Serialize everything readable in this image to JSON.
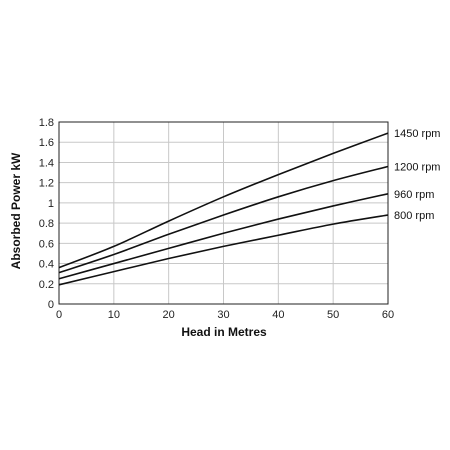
{
  "chart_data": {
    "type": "line",
    "title": "",
    "xlabel": "Head in Metres",
    "ylabel": "Absorbed Power kW",
    "xlim": [
      0,
      60
    ],
    "ylim": [
      0,
      1.8
    ],
    "xticks": [
      "0",
      "10",
      "20",
      "30",
      "40",
      "50",
      "60"
    ],
    "yticks": [
      "0",
      "0.2",
      "0.4",
      "0.6",
      "0.8",
      "1",
      "1.2",
      "1.4",
      "1.6",
      "1.8"
    ],
    "grid": true,
    "legend": "labels at right end of each curve",
    "x": [
      0,
      10,
      20,
      30,
      40,
      50,
      60
    ],
    "series": [
      {
        "name": "1450 rpm",
        "values": [
          0.36,
          0.57,
          0.82,
          1.06,
          1.28,
          1.49,
          1.69
        ]
      },
      {
        "name": "1200 rpm",
        "values": [
          0.31,
          0.49,
          0.69,
          0.88,
          1.06,
          1.22,
          1.36
        ]
      },
      {
        "name": "960 rpm",
        "values": [
          0.25,
          0.4,
          0.55,
          0.7,
          0.84,
          0.97,
          1.09
        ]
      },
      {
        "name": "800 rpm",
        "values": [
          0.19,
          0.32,
          0.45,
          0.57,
          0.68,
          0.79,
          0.88
        ]
      }
    ],
    "colors": {
      "line": "#111111",
      "grid": "#c8c8c8",
      "frame": "#222222"
    }
  }
}
